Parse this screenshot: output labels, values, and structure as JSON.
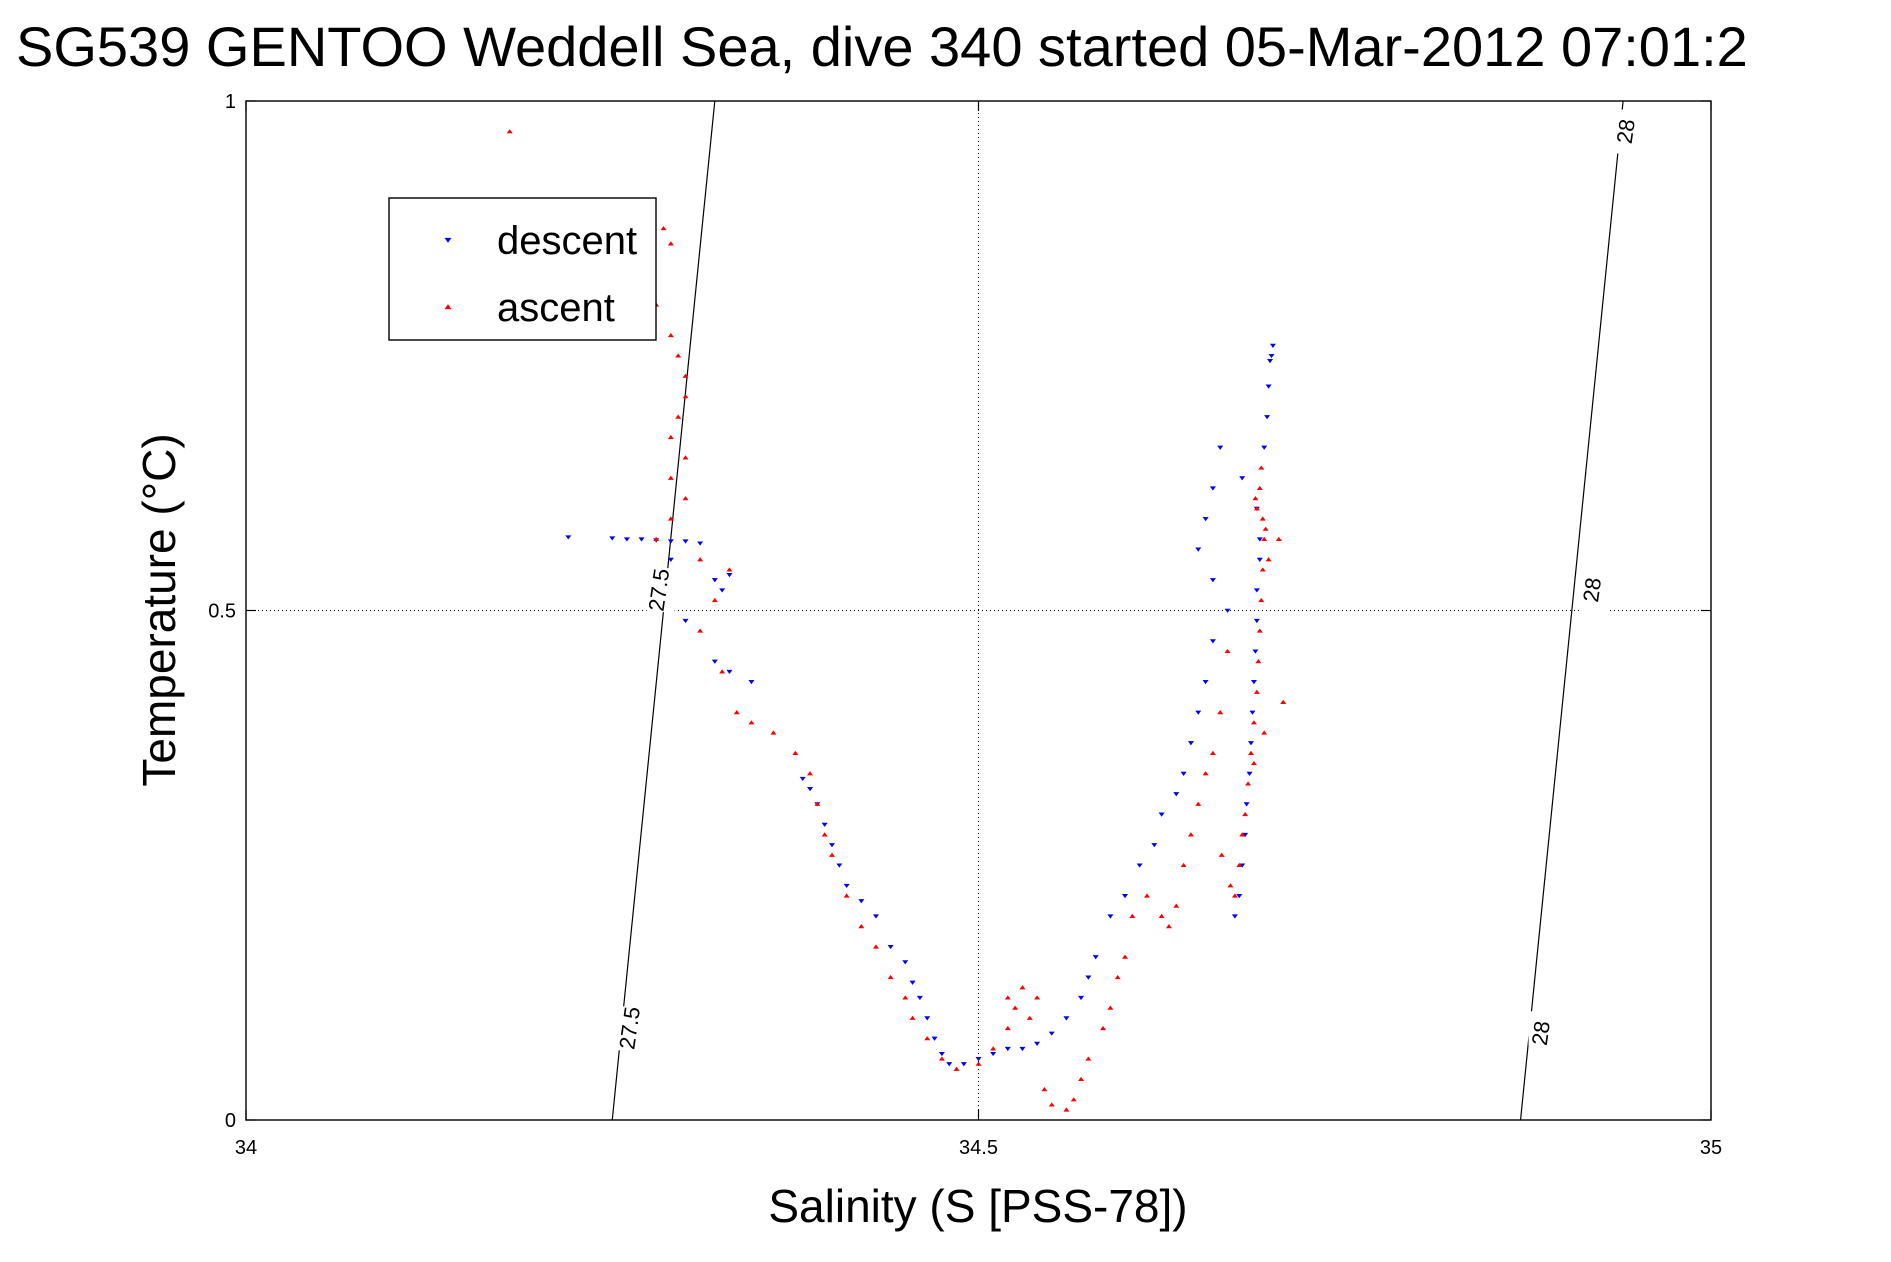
{
  "chart_data": {
    "type": "scatter",
    "title": "SG539 GENTOO Weddell Sea, dive 340 started 05-Mar-2012 07:01:2",
    "xlabel": "Salinity (S [PSS-78])",
    "ylabel": "Temperature (°C)",
    "xlim": [
      34,
      35
    ],
    "ylim": [
      0,
      1
    ],
    "x_ticks": [
      34,
      34.5,
      35
    ],
    "x_tick_labels": [
      "34",
      "34.5",
      "35"
    ],
    "y_ticks": [
      0,
      0.5,
      1
    ],
    "y_tick_labels": [
      "0",
      "0.5",
      "1"
    ],
    "grid": "dotted at 34.5 and 0.5",
    "legend_position": "top-left",
    "isopycnals": [
      {
        "label": "27.5",
        "points": [
          [
            34.25,
            0
          ],
          [
            34.32,
            1
          ]
        ],
        "label_positions": [
          [
            34.263,
            0.09
          ],
          [
            34.283,
            0.52
          ]
        ]
      },
      {
        "label": "28",
        "points": [
          [
            34.87,
            0
          ],
          [
            34.94,
            1
          ]
        ],
        "label_positions": [
          [
            34.885,
            0.085
          ],
          [
            34.92,
            0.52
          ],
          [
            34.943,
            0.97
          ]
        ]
      }
    ],
    "series": [
      {
        "name": "descent",
        "color": "#0000ff",
        "marker": "triangle-down",
        "points": [
          [
            34.22,
            0.572
          ],
          [
            34.25,
            0.571
          ],
          [
            34.26,
            0.57
          ],
          [
            34.27,
            0.57
          ],
          [
            34.28,
            0.569
          ],
          [
            34.29,
            0.568
          ],
          [
            34.3,
            0.568
          ],
          [
            34.31,
            0.566
          ],
          [
            34.29,
            0.55
          ],
          [
            34.32,
            0.53
          ],
          [
            34.33,
            0.535
          ],
          [
            34.325,
            0.52
          ],
          [
            34.3,
            0.49
          ],
          [
            34.32,
            0.45
          ],
          [
            34.33,
            0.44
          ],
          [
            34.345,
            0.43
          ],
          [
            34.38,
            0.335
          ],
          [
            34.385,
            0.325
          ],
          [
            34.39,
            0.31
          ],
          [
            34.395,
            0.29
          ],
          [
            34.4,
            0.27
          ],
          [
            34.405,
            0.25
          ],
          [
            34.41,
            0.23
          ],
          [
            34.42,
            0.215
          ],
          [
            34.43,
            0.2
          ],
          [
            34.44,
            0.17
          ],
          [
            34.45,
            0.155
          ],
          [
            34.455,
            0.135
          ],
          [
            34.46,
            0.12
          ],
          [
            34.465,
            0.1
          ],
          [
            34.47,
            0.08
          ],
          [
            34.475,
            0.065
          ],
          [
            34.48,
            0.055
          ],
          [
            34.49,
            0.055
          ],
          [
            34.5,
            0.06
          ],
          [
            34.51,
            0.065
          ],
          [
            34.52,
            0.07
          ],
          [
            34.53,
            0.07
          ],
          [
            34.54,
            0.075
          ],
          [
            34.55,
            0.085
          ],
          [
            34.56,
            0.1
          ],
          [
            34.57,
            0.12
          ],
          [
            34.575,
            0.14
          ],
          [
            34.58,
            0.16
          ],
          [
            34.59,
            0.2
          ],
          [
            34.6,
            0.22
          ],
          [
            34.61,
            0.25
          ],
          [
            34.62,
            0.27
          ],
          [
            34.625,
            0.3
          ],
          [
            34.635,
            0.32
          ],
          [
            34.64,
            0.34
          ],
          [
            34.645,
            0.37
          ],
          [
            34.65,
            0.4
          ],
          [
            34.655,
            0.43
          ],
          [
            34.66,
            0.47
          ],
          [
            34.67,
            0.5
          ],
          [
            34.675,
            0.2
          ],
          [
            34.678,
            0.22
          ],
          [
            34.68,
            0.25
          ],
          [
            34.682,
            0.28
          ],
          [
            34.683,
            0.31
          ],
          [
            34.685,
            0.34
          ],
          [
            34.686,
            0.37
          ],
          [
            34.687,
            0.4
          ],
          [
            34.688,
            0.43
          ],
          [
            34.689,
            0.46
          ],
          [
            34.69,
            0.49
          ],
          [
            34.69,
            0.52
          ],
          [
            34.692,
            0.55
          ],
          [
            34.692,
            0.57
          ],
          [
            34.69,
            0.6
          ],
          [
            34.68,
            0.63
          ],
          [
            34.695,
            0.66
          ],
          [
            34.697,
            0.69
          ],
          [
            34.698,
            0.72
          ],
          [
            34.7,
            0.75
          ],
          [
            34.701,
            0.76
          ],
          [
            34.699,
            0.745
          ],
          [
            34.665,
            0.66
          ],
          [
            34.66,
            0.62
          ],
          [
            34.655,
            0.59
          ],
          [
            34.65,
            0.56
          ],
          [
            34.66,
            0.53
          ]
        ]
      },
      {
        "name": "ascent",
        "color": "#ff0000",
        "marker": "triangle-up",
        "points": [
          [
            34.18,
            0.97
          ],
          [
            34.285,
            0.875
          ],
          [
            34.29,
            0.86
          ],
          [
            34.28,
            0.8
          ],
          [
            34.29,
            0.77
          ],
          [
            34.295,
            0.75
          ],
          [
            34.3,
            0.73
          ],
          [
            34.3,
            0.71
          ],
          [
            34.295,
            0.69
          ],
          [
            34.29,
            0.67
          ],
          [
            34.3,
            0.65
          ],
          [
            34.29,
            0.63
          ],
          [
            34.3,
            0.61
          ],
          [
            34.29,
            0.59
          ],
          [
            34.28,
            0.57
          ],
          [
            34.31,
            0.55
          ],
          [
            34.33,
            0.54
          ],
          [
            34.32,
            0.51
          ],
          [
            34.31,
            0.48
          ],
          [
            34.325,
            0.44
          ],
          [
            34.335,
            0.4
          ],
          [
            34.345,
            0.39
          ],
          [
            34.36,
            0.38
          ],
          [
            34.375,
            0.36
          ],
          [
            34.385,
            0.34
          ],
          [
            34.39,
            0.31
          ],
          [
            34.395,
            0.28
          ],
          [
            34.4,
            0.26
          ],
          [
            34.41,
            0.22
          ],
          [
            34.42,
            0.19
          ],
          [
            34.43,
            0.17
          ],
          [
            34.44,
            0.14
          ],
          [
            34.45,
            0.12
          ],
          [
            34.455,
            0.1
          ],
          [
            34.465,
            0.08
          ],
          [
            34.475,
            0.06
          ],
          [
            34.485,
            0.05
          ],
          [
            34.5,
            0.055
          ],
          [
            34.51,
            0.07
          ],
          [
            34.52,
            0.09
          ],
          [
            34.525,
            0.11
          ],
          [
            34.53,
            0.13
          ],
          [
            34.52,
            0.12
          ],
          [
            34.54,
            0.12
          ],
          [
            34.535,
            0.1
          ],
          [
            34.545,
            0.03
          ],
          [
            34.55,
            0.015
          ],
          [
            34.56,
            0.01
          ],
          [
            34.565,
            0.02
          ],
          [
            34.57,
            0.04
          ],
          [
            34.575,
            0.06
          ],
          [
            34.585,
            0.09
          ],
          [
            34.59,
            0.11
          ],
          [
            34.595,
            0.14
          ],
          [
            34.6,
            0.16
          ],
          [
            34.605,
            0.2
          ],
          [
            34.615,
            0.22
          ],
          [
            34.625,
            0.2
          ],
          [
            34.63,
            0.19
          ],
          [
            34.635,
            0.21
          ],
          [
            34.64,
            0.25
          ],
          [
            34.645,
            0.28
          ],
          [
            34.65,
            0.31
          ],
          [
            34.655,
            0.34
          ],
          [
            34.66,
            0.36
          ],
          [
            34.665,
            0.4
          ],
          [
            34.67,
            0.46
          ],
          [
            34.675,
            0.22
          ],
          [
            34.678,
            0.25
          ],
          [
            34.68,
            0.28
          ],
          [
            34.682,
            0.3
          ],
          [
            34.684,
            0.33
          ],
          [
            34.686,
            0.36
          ],
          [
            34.688,
            0.39
          ],
          [
            34.69,
            0.42
          ],
          [
            34.691,
            0.45
          ],
          [
            34.692,
            0.48
          ],
          [
            34.693,
            0.51
          ],
          [
            34.694,
            0.54
          ],
          [
            34.695,
            0.57
          ],
          [
            34.694,
            0.59
          ],
          [
            34.69,
            0.6
          ],
          [
            34.692,
            0.62
          ],
          [
            34.693,
            0.64
          ],
          [
            34.689,
            0.61
          ],
          [
            34.696,
            0.58
          ],
          [
            34.698,
            0.55
          ],
          [
            34.708,
            0.41
          ],
          [
            34.695,
            0.38
          ],
          [
            34.688,
            0.35
          ],
          [
            34.672,
            0.23
          ],
          [
            34.666,
            0.26
          ],
          [
            34.705,
            0.57
          ]
        ]
      }
    ]
  }
}
